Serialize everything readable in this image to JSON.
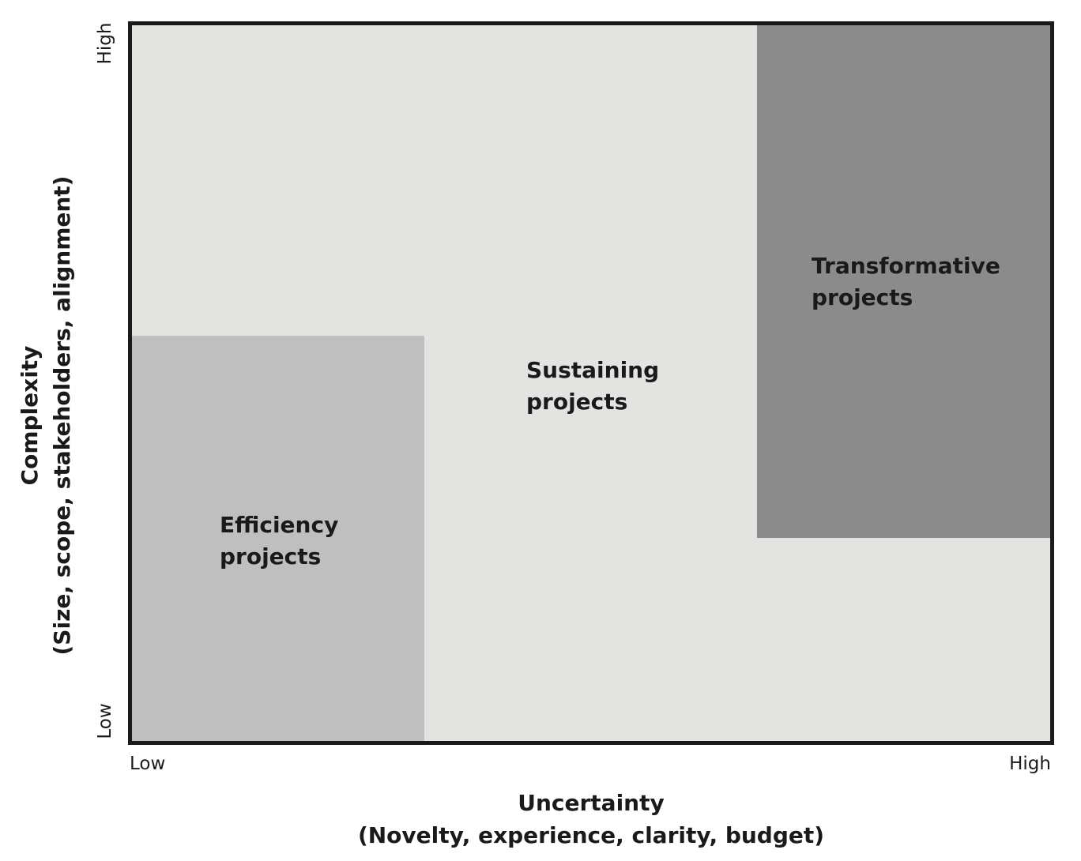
{
  "axes": {
    "x": {
      "title_line1": "Uncertainty",
      "title_line2": "(Novelty, experience, clarity, budget)",
      "low_label": "Low",
      "high_label": "High"
    },
    "y": {
      "title_line1": "Complexity",
      "title_line2": "(Size, scope, stakeholders, alignment)",
      "low_label": "Low",
      "high_label": "High"
    }
  },
  "regions": {
    "efficiency": {
      "line1": "Efficiency",
      "line2": "projects",
      "color": "#bfbfbf"
    },
    "sustaining": {
      "line1": "Sustaining",
      "line2": "projects",
      "color": "#e3e3e2"
    },
    "transformative": {
      "line1": "Transformative",
      "line2": "projects",
      "color": "#8b8b8b"
    }
  },
  "colors": {
    "frame": "#1a1a1a",
    "text": "#1a1a1a"
  }
}
